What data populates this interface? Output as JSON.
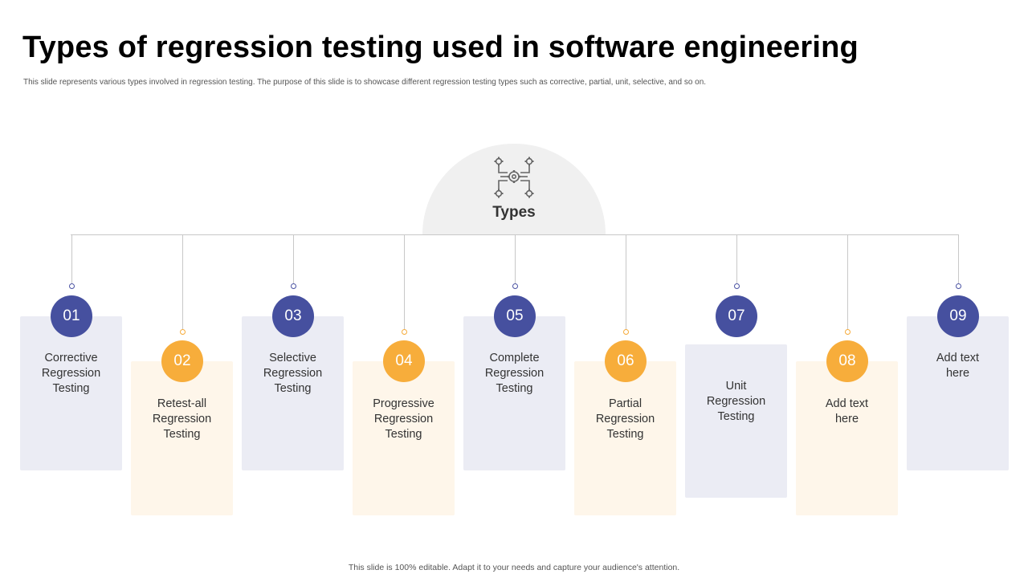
{
  "slide": {
    "title": "Types of regression testing used in software engineering",
    "subtitle": "This slide represents various types involved in regression testing. The purpose of this slide is to showcase different regression testing types such as corrective, partial, unit, selective, and so on.",
    "footer": "This slide is 100% editable. Adapt it to your needs and capture your audience's attention."
  },
  "hub": {
    "label": "Types",
    "icon": "gear-network-icon"
  },
  "colors": {
    "blue": "#46509f",
    "orange": "#f7ad3b",
    "blue_card": "#ebecf4",
    "orange_card": "#fef6ea"
  },
  "items": [
    {
      "number": "01",
      "lines": [
        "Corrective",
        "Regression",
        "Testing"
      ],
      "color": "blue"
    },
    {
      "number": "02",
      "lines": [
        "Retest-all",
        "Regression",
        "Testing"
      ],
      "color": "orange"
    },
    {
      "number": "03",
      "lines": [
        "Selective",
        "Regression",
        "Testing"
      ],
      "color": "blue"
    },
    {
      "number": "04",
      "lines": [
        "Progressive",
        "Regression",
        "Testing"
      ],
      "color": "orange"
    },
    {
      "number": "05",
      "lines": [
        "Complete",
        "Regression",
        "Testing"
      ],
      "color": "blue"
    },
    {
      "number": "06",
      "lines": [
        "Partial",
        "Regression",
        "Testing"
      ],
      "color": "orange"
    },
    {
      "number": "07",
      "lines": [
        "Unit",
        "Regression",
        "Testing"
      ],
      "color": "blue"
    },
    {
      "number": "08",
      "lines": [
        "Add text",
        "here"
      ],
      "color": "orange"
    },
    {
      "number": "09",
      "lines": [
        "Add text",
        "here"
      ],
      "color": "blue"
    }
  ]
}
